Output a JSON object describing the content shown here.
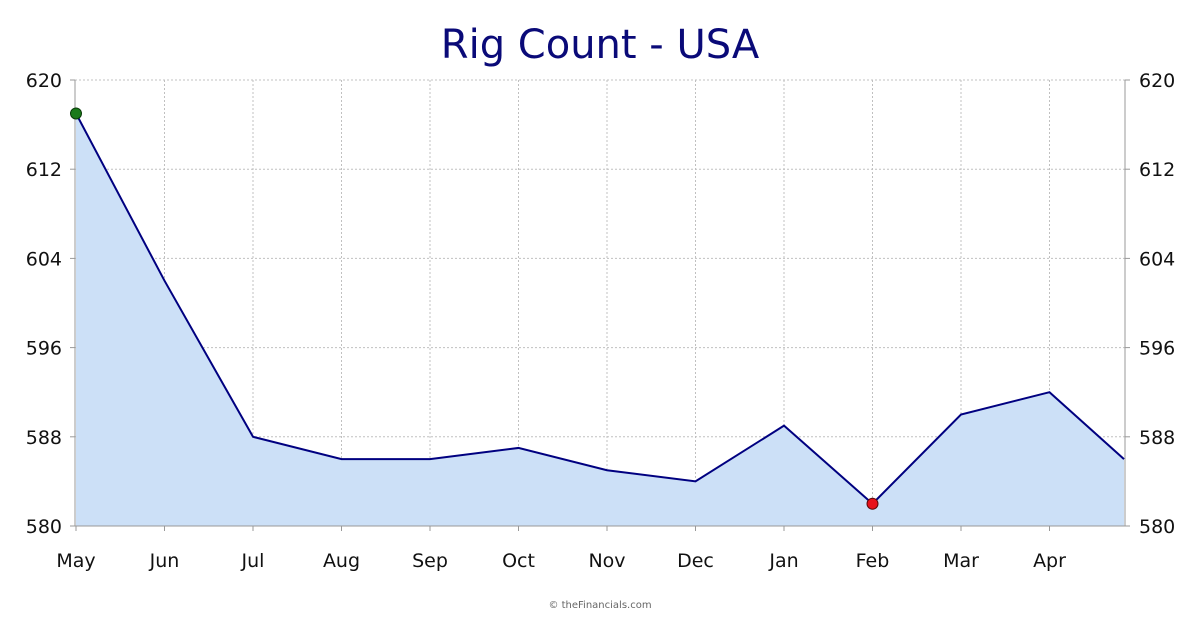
{
  "chart_data": {
    "type": "area",
    "title": "Rig Count - USA",
    "categories": [
      "May",
      "Jun",
      "Jul",
      "Aug",
      "Sep",
      "Oct",
      "Nov",
      "Dec",
      "Jan",
      "Feb",
      "Mar",
      "Apr"
    ],
    "series": [
      {
        "points": [
          {
            "x": "May",
            "y": 617
          },
          {
            "x": "",
            "y": 602
          },
          {
            "x": "Jul",
            "y": 588
          },
          {
            "x": "Aug",
            "y": 586
          },
          {
            "x": "Sep",
            "y": 586
          },
          {
            "x": "Oct",
            "y": 587
          },
          {
            "x": "Nov",
            "y": 585
          },
          {
            "x": "Dec",
            "y": 584
          },
          {
            "x": "Jan",
            "y": 589
          },
          {
            "x": "Feb",
            "y": 582
          },
          {
            "x": "Mar",
            "y": 590
          },
          {
            "x": "Apr",
            "y": 592
          },
          {
            "x": "",
            "y": 586
          }
        ]
      }
    ],
    "highlights": {
      "max": {
        "x": "May",
        "y": 617
      },
      "min": {
        "x": "Feb",
        "y": 582
      }
    },
    "yticks": [
      580,
      588,
      596,
      604,
      612,
      620
    ],
    "ylim": [
      580,
      620
    ],
    "y_axis_both_sides": true,
    "grid": true,
    "xlabel": "",
    "ylabel": "",
    "colors": {
      "title": "#0a0a78",
      "line": "#000080",
      "fill": "#cce0f7",
      "grid": "#c0c0c0",
      "axis": "#999999",
      "max_marker": "#1a7a1a",
      "min_marker": "#e8111a"
    }
  },
  "footer": {
    "credit": "© theFinancials.com"
  }
}
